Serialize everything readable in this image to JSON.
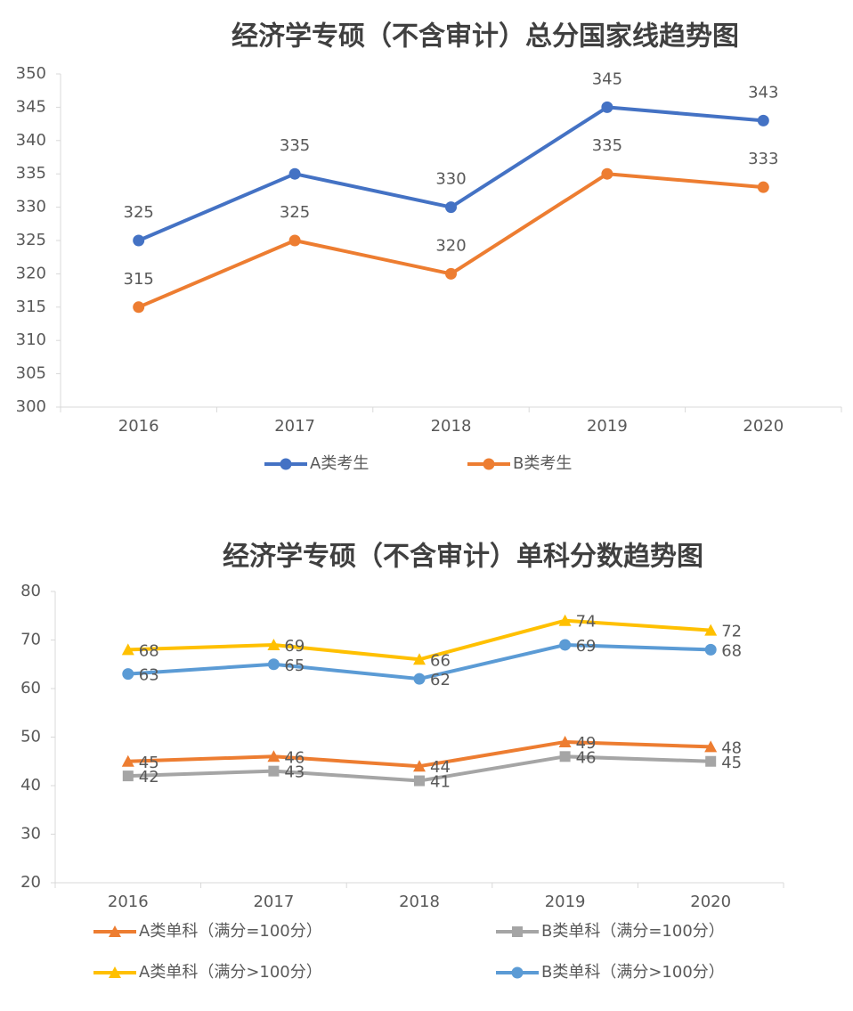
{
  "chart_data": [
    {
      "type": "line",
      "title": "经济学专硕（不含审计）总分国家线趋势图",
      "categories": [
        "2016",
        "2017",
        "2018",
        "2019",
        "2020"
      ],
      "series": [
        {
          "name": "A类考生",
          "color": "#4472c4",
          "marker": "circle",
          "values": [
            325,
            335,
            330,
            345,
            343
          ]
        },
        {
          "name": "B类考生",
          "color": "#ed7d31",
          "marker": "circle",
          "values": [
            315,
            325,
            320,
            335,
            333
          ]
        }
      ],
      "ylim": [
        300,
        350
      ],
      "yticks": [
        300,
        305,
        310,
        315,
        320,
        325,
        330,
        335,
        340,
        345,
        350
      ],
      "grid": false,
      "legend": "bottom",
      "data_labels": true
    },
    {
      "type": "line",
      "title": "经济学专硕（不含审计）单科分数趋势图",
      "categories": [
        "2016",
        "2017",
        "2018",
        "2019",
        "2020"
      ],
      "series": [
        {
          "name": "A类单科（满分=100分）",
          "color": "#ed7d31",
          "marker": "triangle",
          "values": [
            45,
            46,
            44,
            49,
            48
          ]
        },
        {
          "name": "B类单科（满分=100分）",
          "color": "#a5a5a5",
          "marker": "square",
          "values": [
            42,
            43,
            41,
            46,
            45
          ]
        },
        {
          "name": "A类单科（满分>100分）",
          "color": "#ffc000",
          "marker": "triangle",
          "values": [
            68,
            69,
            66,
            74,
            72
          ]
        },
        {
          "name": "B类单科（满分>100分）",
          "color": "#5b9bd5",
          "marker": "circle",
          "values": [
            63,
            65,
            62,
            69,
            68
          ]
        }
      ],
      "ylim": [
        20,
        80
      ],
      "yticks": [
        20,
        30,
        40,
        50,
        60,
        70,
        80
      ],
      "grid": false,
      "legend": "bottom",
      "data_labels": true
    }
  ]
}
